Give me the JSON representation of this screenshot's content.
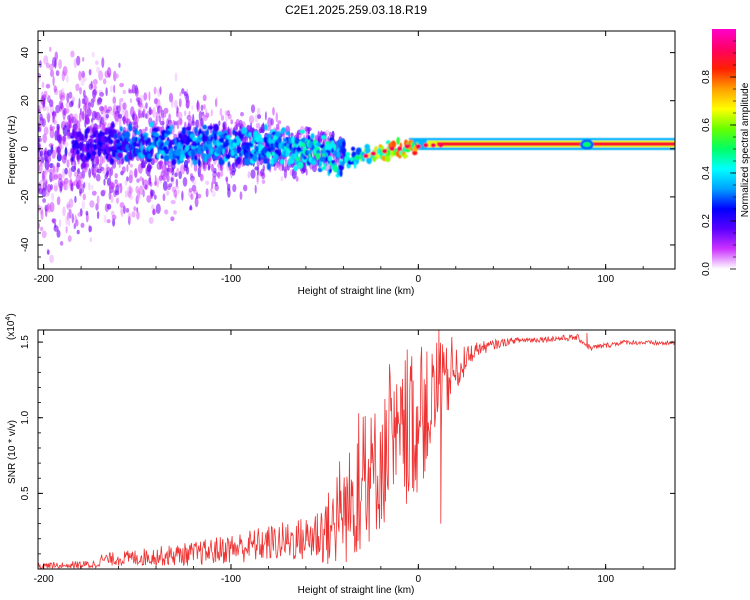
{
  "title": "C2E1.2025.259.03.18.R19",
  "chart_data": [
    {
      "type": "heatmap",
      "name": "spectrogram",
      "xlabel": "Height of straight line (km)",
      "ylabel": "Frequency (Hz)",
      "xlim": [
        -203,
        137
      ],
      "ylim": [
        -50,
        49
      ],
      "x_ticks": [
        -200,
        -100,
        0,
        100
      ],
      "x_tick_labels": [
        "-200",
        "-100",
        "0",
        "100"
      ],
      "y_ticks": [
        -40,
        -20,
        0,
        20,
        40
      ],
      "y_tick_labels": [
        "-40",
        "-20",
        "0",
        "20",
        "40"
      ],
      "colorbar": {
        "label": "Normalized spectral amplitude",
        "range": [
          0,
          1
        ],
        "ticks": [
          0,
          0.2,
          0.4,
          0.6,
          0.8
        ],
        "tick_labels": [
          "0.0",
          "0.2",
          "0.4",
          "0.6",
          "0.8"
        ],
        "stops": [
          "#ffffff",
          "#cc33ff",
          "#5a00ff",
          "#0000ff",
          "#00a0ff",
          "#00ffff",
          "#00ff66",
          "#66ff00",
          "#ffff00",
          "#ffa000",
          "#ff2000",
          "#ff0066",
          "#ff00cc"
        ]
      },
      "noise_band": {
        "x_from": -203,
        "x_to": -40,
        "freq_halfwidth_at_start": 50,
        "freq_halfwidth_at_end": 6
      },
      "signal_track": [
        {
          "x": -180,
          "f": 1.5,
          "amp": 0.2
        },
        {
          "x": -140,
          "f": 2.0,
          "amp": 0.35
        },
        {
          "x": -100,
          "f": 1.5,
          "amp": 0.35
        },
        {
          "x": -70,
          "f": 0.0,
          "amp": 0.4
        },
        {
          "x": -50,
          "f": -3.0,
          "amp": 0.45
        },
        {
          "x": -40,
          "f": -4.0,
          "amp": 0.4
        },
        {
          "x": -30,
          "f": -3.0,
          "amp": 0.55
        },
        {
          "x": -20,
          "f": -1.0,
          "amp": 0.7
        },
        {
          "x": 0,
          "f": 1.0,
          "amp": 0.8
        },
        {
          "x": 30,
          "f": 1.5,
          "amp": 0.9
        },
        {
          "x": 90,
          "f": 1.8,
          "amp": 0.95
        },
        {
          "x": 137,
          "f": 1.8,
          "amp": 0.95
        }
      ],
      "carrier_band": {
        "x_from": -5,
        "x_to": 137,
        "f_center": 2,
        "halfwidth": 2.5
      }
    },
    {
      "type": "line",
      "name": "snr",
      "xlabel": "Height of straight line (km)",
      "ylabel": "SNR (10 * v/v)",
      "y_multiplier_label": "(x10",
      "y_multiplier_exp": "4",
      "y_multiplier_close": ")",
      "xlim": [
        -203,
        137
      ],
      "ylim": [
        0,
        1.58
      ],
      "x_ticks": [
        -200,
        -100,
        0,
        100
      ],
      "x_tick_labels": [
        "-200",
        "-100",
        "0",
        "100"
      ],
      "y_ticks": [
        0.5,
        1.0,
        1.5
      ],
      "y_tick_labels": [
        "0.5",
        "1.0",
        "1.5"
      ],
      "color": "#ee3333",
      "envelope": [
        {
          "x": -203,
          "mean": 0.02,
          "amp": 0.02
        },
        {
          "x": -172,
          "mean": 0.03,
          "amp": 0.03
        },
        {
          "x": -170,
          "mean": 0.06,
          "amp": 0.04
        },
        {
          "x": -120,
          "mean": 0.1,
          "amp": 0.08
        },
        {
          "x": -80,
          "mean": 0.17,
          "amp": 0.12
        },
        {
          "x": -60,
          "mean": 0.2,
          "amp": 0.15
        },
        {
          "x": -45,
          "mean": 0.28,
          "amp": 0.28
        },
        {
          "x": -35,
          "mean": 0.45,
          "amp": 0.4
        },
        {
          "x": -20,
          "mean": 0.7,
          "amp": 0.45
        },
        {
          "x": 0,
          "mean": 0.95,
          "amp": 0.45
        },
        {
          "x": 10,
          "mean": 1.15,
          "amp": 0.35
        },
        {
          "x": 20,
          "mean": 1.3,
          "amp": 0.15
        },
        {
          "x": 30,
          "mean": 1.45,
          "amp": 0.05
        },
        {
          "x": 50,
          "mean": 1.51,
          "amp": 0.02
        },
        {
          "x": 85,
          "mean": 1.53,
          "amp": 0.02
        },
        {
          "x": 92,
          "mean": 1.46,
          "amp": 0.02
        },
        {
          "x": 110,
          "mean": 1.5,
          "amp": 0.015
        },
        {
          "x": 137,
          "mean": 1.49,
          "amp": 0.015
        }
      ],
      "notable_points": [
        {
          "x": 12,
          "y": 0.3
        },
        {
          "x": 11,
          "y": 1.58
        },
        {
          "x": 90,
          "y": 1.56
        }
      ]
    }
  ]
}
